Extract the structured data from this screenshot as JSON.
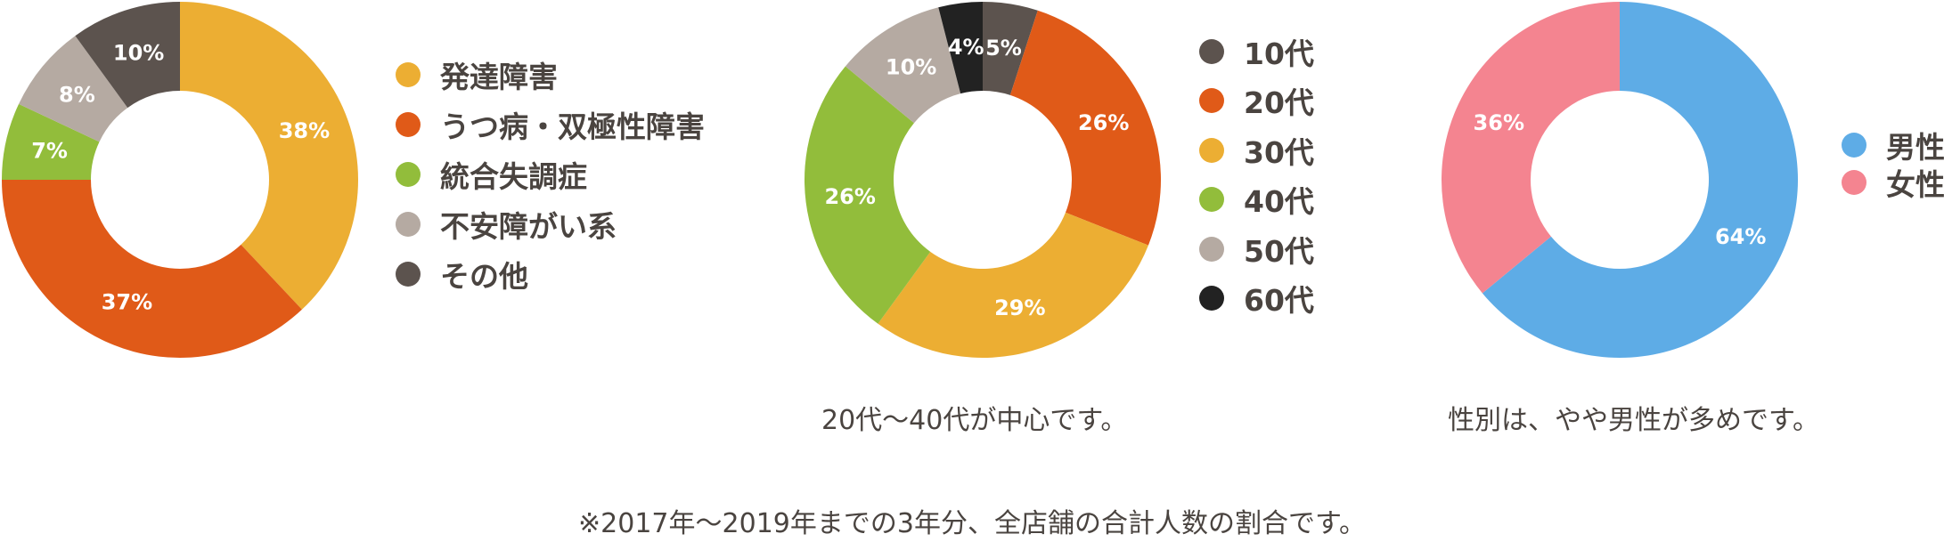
{
  "chart_data": [
    {
      "type": "pie",
      "title": "",
      "categories": [
        "発達障害",
        "うつ病・双極性障害",
        "統合失調症",
        "不安障がい系",
        "その他"
      ],
      "values": [
        38,
        37,
        7,
        8,
        10
      ],
      "value_labels": [
        "38%",
        "37%",
        "7%",
        "8%",
        "10%"
      ],
      "colors": [
        "#ecae33",
        "#e05a18",
        "#92bd3b",
        "#b5aaa2",
        "#5c534e"
      ],
      "legend_position": "right",
      "donut": true
    },
    {
      "type": "pie",
      "title": "",
      "categories": [
        "10代",
        "20代",
        "30代",
        "40代",
        "50代",
        "60代"
      ],
      "values": [
        5,
        26,
        29,
        26,
        10,
        4
      ],
      "value_labels": [
        "5%",
        "26%",
        "29%",
        "26%",
        "10%",
        "4%"
      ],
      "colors": [
        "#5c534e",
        "#e05a18",
        "#ecae33",
        "#92bd3b",
        "#b5aaa2",
        "#222222"
      ],
      "legend_position": "right",
      "donut": true,
      "caption": "20代〜40代が中心です。"
    },
    {
      "type": "pie",
      "title": "",
      "categories": [
        "男性",
        "女性"
      ],
      "values": [
        64,
        36
      ],
      "value_labels": [
        "64%",
        "36%"
      ],
      "colors": [
        "#5eace6",
        "#f48490"
      ],
      "legend_position": "right",
      "donut": true,
      "caption": "性別は、やや男性が多めです。"
    }
  ],
  "footnote": "※2017年〜2019年までの3年分、全店舗の合計人数の割合です。"
}
